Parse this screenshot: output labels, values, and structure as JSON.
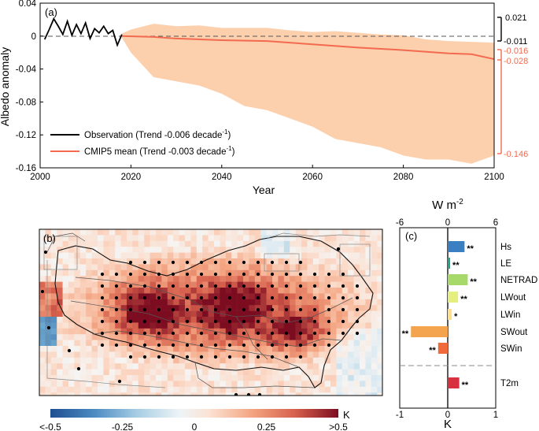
{
  "colors": {
    "observation": "#000000",
    "cmip5": "#f26a4f",
    "cmip5_band": "#fdd0ad",
    "bar_hs": "#3a7fc1",
    "bar_le": "#1fa68a",
    "bar_netrad": "#a6d96a",
    "bar_lwout": "#e5ef80",
    "bar_lwin": "#fee08b",
    "bar_swout": "#f4a44e",
    "bar_swin": "#f06a3c",
    "bar_t2m": "#d7303f"
  },
  "panel_a": {
    "tag": "(a)",
    "ylabel": "Albedo anomaly",
    "xlabel": "Year",
    "xticks": [
      "2000",
      "2020",
      "2040",
      "2060",
      "2080",
      "2100"
    ],
    "yticks": [
      "0.04",
      "0",
      "-0.04",
      "-0.08",
      "-0.12",
      "-0.16"
    ],
    "legend": {
      "obs_label": "Observation (Trend -0.006 decade",
      "obs_sup": "-1",
      "obs_close": ")",
      "cmip_label": "CMIP5 mean (Trend -0.003 decade",
      "cmip_sup": "-1",
      "cmip_close": ")"
    },
    "right_labels": {
      "obs_top": "0.021",
      "obs_bottom": "-0.011",
      "cmip_top": "-0.016",
      "cmip_mid": "-0.028",
      "cmip_bottom": "-0.146"
    }
  },
  "panel_b": {
    "tag": "(b)",
    "colorbar_ticks": [
      "<-0.5",
      "-0.25",
      "0",
      "0.25",
      ">0.5"
    ],
    "colorbar_unit": "K"
  },
  "panel_c": {
    "tag": "(c)",
    "top_unit": "W m",
    "top_unit_sup": "-2",
    "top_ticks": [
      "-6",
      "0",
      "6"
    ],
    "bottom_unit": "K",
    "bottom_ticks": [
      "-1",
      "0",
      "1"
    ],
    "sig_mark": "**",
    "sig_single": "*"
  },
  "chart_data": [
    {
      "type": "line",
      "title": "",
      "xlabel": "Year",
      "ylabel": "Albedo anomaly",
      "xlim": [
        2000,
        2100
      ],
      "ylim": [
        -0.16,
        0.04
      ],
      "grid": false,
      "legend_position": "bottom-left",
      "series": [
        {
          "name": "Observation (Trend -0.006 decade-1)",
          "x": [
            2001,
            2002,
            2003,
            2004,
            2005,
            2006,
            2007,
            2008,
            2009,
            2010,
            2011,
            2012,
            2013,
            2014,
            2015,
            2016,
            2017,
            2018
          ],
          "y": [
            -0.004,
            0.008,
            0.021,
            0.012,
            0.002,
            0.018,
            0.001,
            0.014,
            0.003,
            0.016,
            -0.003,
            0.009,
            0.004,
            0.012,
            0.003,
            0.007,
            -0.011,
            0.002
          ]
        },
        {
          "name": "CMIP5 mean (Trend -0.003 decade-1)",
          "x": [
            2018,
            2025,
            2030,
            2040,
            2050,
            2060,
            2070,
            2080,
            2090,
            2095,
            2100
          ],
          "y": [
            0.0,
            -0.001,
            -0.003,
            -0.005,
            -0.006,
            -0.01,
            -0.014,
            -0.017,
            -0.021,
            -0.022,
            -0.028
          ]
        }
      ],
      "band": {
        "name": "CMIP5 spread",
        "x": [
          2018,
          2020,
          2025,
          2030,
          2035,
          2040,
          2045,
          2050,
          2055,
          2060,
          2065,
          2070,
          2075,
          2080,
          2085,
          2090,
          2095,
          2100
        ],
        "upper": [
          0.003,
          0.008,
          0.015,
          0.012,
          0.013,
          0.01,
          0.01,
          0.01,
          0.007,
          0.005,
          0.006,
          0.004,
          0.002,
          0.001,
          -0.004,
          -0.006,
          -0.007,
          -0.008
        ],
        "lower": [
          -0.002,
          -0.02,
          -0.05,
          -0.055,
          -0.06,
          -0.07,
          -0.085,
          -0.09,
          -0.1,
          -0.11,
          -0.125,
          -0.13,
          -0.135,
          -0.145,
          -0.15,
          -0.15,
          -0.155,
          -0.145
        ]
      },
      "annotations": [
        "0.021",
        "-0.011",
        "-0.016",
        "-0.028",
        "-0.146"
      ]
    },
    {
      "type": "heatmap",
      "title": "",
      "colorbar": {
        "ticks": [
          "<-0.5",
          "-0.25",
          "0",
          "0.25",
          ">0.5"
        ],
        "unit": "K",
        "range": [
          -0.5,
          0.5
        ]
      }
    },
    {
      "type": "bar",
      "title": "",
      "orientation": "horizontal",
      "categories": [
        "Hs",
        "LE",
        "NETRAD",
        "LWout",
        "LWin",
        "SWout",
        "SWin"
      ],
      "values": [
        2.1,
        0.3,
        2.5,
        1.3,
        0.5,
        -4.6,
        -1.2
      ],
      "significance": [
        "**",
        "**",
        "**",
        "**",
        "*",
        "**",
        "**"
      ],
      "xlabel": "W m-2",
      "xlim": [
        -6,
        6
      ],
      "lower": {
        "categories": [
          "T2m"
        ],
        "values": [
          0.24
        ],
        "significance": [
          "**"
        ],
        "xlabel": "K",
        "xlim": [
          -1,
          1
        ]
      }
    }
  ]
}
